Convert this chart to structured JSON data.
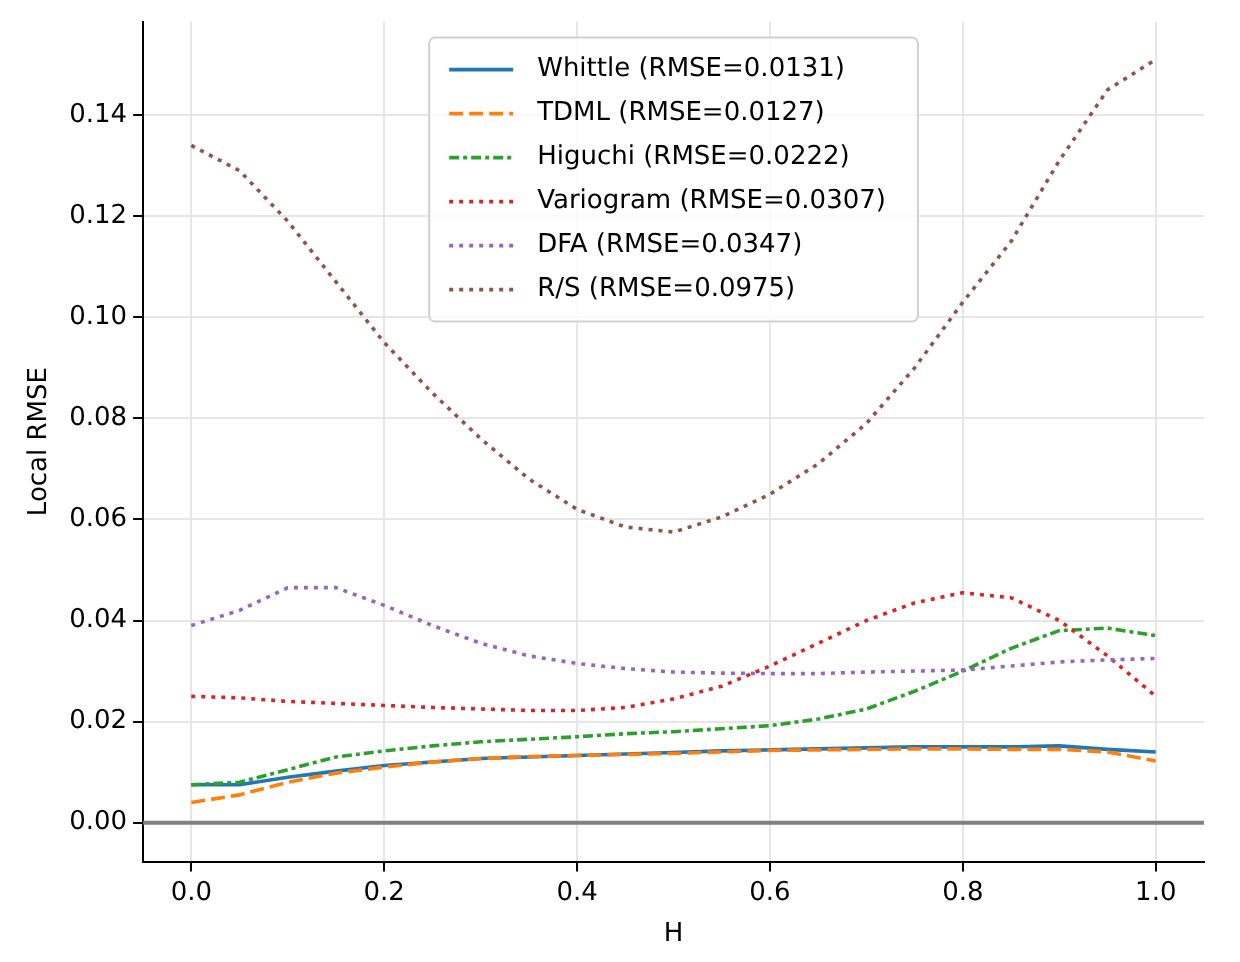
{
  "chart_data": {
    "type": "line",
    "xlabel": "H",
    "ylabel": "Local RMSE",
    "x": [
      0,
      0.05,
      0.1,
      0.15,
      0.2,
      0.25,
      0.3,
      0.35,
      0.4,
      0.45,
      0.5,
      0.55,
      0.6,
      0.65,
      0.7,
      0.75,
      0.8,
      0.85,
      0.9,
      0.95,
      1
    ],
    "series": [
      {
        "name": "Whittle (RMSE=0.0131)",
        "color": "#1f77b4",
        "line_style": "solid",
        "values": [
          0.0075,
          0.0075,
          0.009,
          0.0102,
          0.0113,
          0.012,
          0.0127,
          0.013,
          0.0133,
          0.0136,
          0.0139,
          0.0142,
          0.0144,
          0.0146,
          0.0148,
          0.015,
          0.015,
          0.015,
          0.0152,
          0.0145,
          0.014
        ]
      },
      {
        "name": "TDML (RMSE=0.0127)",
        "color": "#ff7f0e",
        "line_style": "dashed",
        "values": [
          0.004,
          0.0055,
          0.008,
          0.0098,
          0.011,
          0.012,
          0.0127,
          0.0131,
          0.0133,
          0.0135,
          0.0137,
          0.014,
          0.0143,
          0.0144,
          0.0145,
          0.0146,
          0.0146,
          0.0145,
          0.0145,
          0.014,
          0.0122
        ]
      },
      {
        "name": "Higuchi (RMSE=0.0222)",
        "color": "#2ca02c",
        "line_style": "dashdot",
        "values": [
          0.0075,
          0.008,
          0.0105,
          0.013,
          0.0142,
          0.0152,
          0.016,
          0.0165,
          0.017,
          0.0176,
          0.018,
          0.0186,
          0.0192,
          0.0205,
          0.0225,
          0.026,
          0.03,
          0.0345,
          0.038,
          0.0385,
          0.037
        ]
      },
      {
        "name": "Variogram (RMSE=0.0307)",
        "color": "#d62728",
        "line_style": "dotted",
        "values": [
          0.025,
          0.0247,
          0.024,
          0.0236,
          0.0232,
          0.0228,
          0.0225,
          0.0222,
          0.0222,
          0.0228,
          0.0245,
          0.027,
          0.031,
          0.0355,
          0.04,
          0.0435,
          0.0455,
          0.0445,
          0.04,
          0.033,
          0.025
        ]
      },
      {
        "name": "DFA (RMSE=0.0347)",
        "color": "#9467bd",
        "line_style": "dotted",
        "values": [
          0.039,
          0.042,
          0.0465,
          0.0465,
          0.043,
          0.039,
          0.0355,
          0.033,
          0.0315,
          0.0305,
          0.0298,
          0.0296,
          0.0295,
          0.0295,
          0.0298,
          0.03,
          0.0302,
          0.031,
          0.0318,
          0.0322,
          0.0325
        ]
      },
      {
        "name": "R/S (RMSE=0.0975)",
        "color": "#8c564b",
        "line_style": "dotted",
        "values": [
          0.134,
          0.129,
          0.119,
          0.107,
          0.095,
          0.085,
          0.076,
          0.068,
          0.062,
          0.0585,
          0.0575,
          0.0605,
          0.065,
          0.071,
          0.079,
          0.09,
          0.103,
          0.115,
          0.131,
          0.145,
          0.151
        ]
      }
    ],
    "xlim": [
      -0.05,
      1.05
    ],
    "ylim": [
      -0.0077,
      0.1585
    ],
    "xticks": [
      {
        "value": 0,
        "label": "0.0"
      },
      {
        "value": 0.2,
        "label": "0.2"
      },
      {
        "value": 0.4,
        "label": "0.4"
      },
      {
        "value": 0.6,
        "label": "0.6"
      },
      {
        "value": 0.8,
        "label": "0.8"
      },
      {
        "value": 1,
        "label": "1.0"
      }
    ],
    "yticks": [
      {
        "value": 0,
        "label": "0.00"
      },
      {
        "value": 0.02,
        "label": "0.02"
      },
      {
        "value": 0.04,
        "label": "0.04"
      },
      {
        "value": 0.06,
        "label": "0.06"
      },
      {
        "value": 0.08,
        "label": "0.08"
      },
      {
        "value": 0.1,
        "label": "0.10"
      },
      {
        "value": 0.12,
        "label": "0.12"
      },
      {
        "value": 0.14,
        "label": "0.14"
      }
    ],
    "ref_lines": [
      {
        "axis": "y",
        "value": 0,
        "color": "#808080"
      }
    ],
    "grid": true,
    "legend": "top",
    "marker": "none"
  }
}
